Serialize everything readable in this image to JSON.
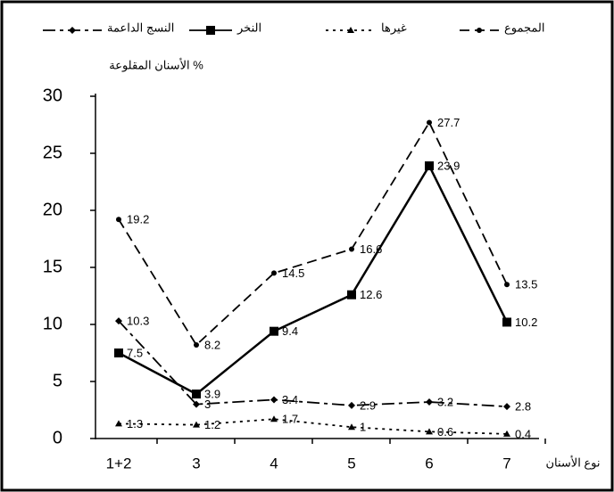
{
  "chart_data": {
    "type": "line",
    "y_label": "الأسنان المقلوعة %",
    "x_label": "نوع الأسنان",
    "categories": [
      "1+2",
      "3",
      "4",
      "5",
      "6",
      "7"
    ],
    "series": [
      {
        "name": "المجموع",
        "color": "#000000",
        "marker": "circle",
        "dash": "11 6",
        "values": [
          19.2,
          8.2,
          14.5,
          16.6,
          27.7,
          13.5
        ]
      },
      {
        "name": "النخر",
        "color": "#000000",
        "marker": "square",
        "dash": "none",
        "values": [
          7.5,
          3.9,
          9.4,
          12.6,
          23.9,
          10.2
        ]
      },
      {
        "name": "النسج الداعمة",
        "color": "#000000",
        "marker": "diamond",
        "dash": "14 5 4 5",
        "values": [
          10.3,
          3,
          3.4,
          2.9,
          3.2,
          2.8
        ]
      },
      {
        "name": "غيرها",
        "color": "#000000",
        "marker": "triangle",
        "dash": "3 5",
        "values": [
          1.3,
          1.2,
          1.7,
          1,
          0.6,
          0.4
        ]
      }
    ],
    "ylim": [
      0,
      30
    ],
    "yticks": [
      0,
      5,
      10,
      15,
      20,
      25,
      30
    ],
    "grid": false
  }
}
